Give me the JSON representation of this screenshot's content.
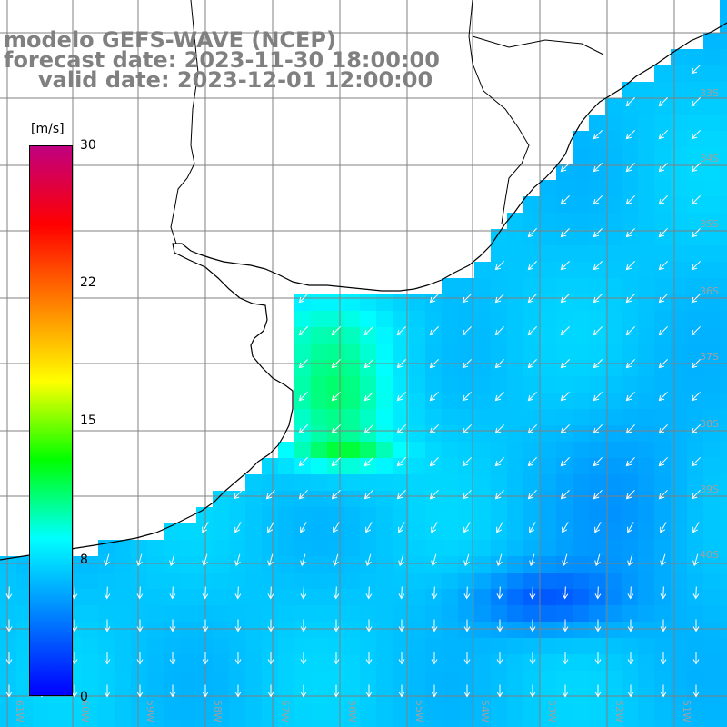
{
  "title": {
    "line1": "modelo GEFS-WAVE (NCEP)",
    "line2": "forecast date: 2023-11-30 18:00:00",
    "line3": "valid date: 2023-12-01 12:00:00"
  },
  "colorbar": {
    "unit": "[m/s]",
    "ticks": [
      "30",
      "22",
      "15",
      "8",
      "0"
    ],
    "tick_values": [
      30,
      22,
      15,
      8,
      0
    ],
    "range": [
      0,
      30
    ],
    "colors": [
      "#0000ff",
      "#0080ff",
      "#00ffff",
      "#00ff00",
      "#ffff00",
      "#ff8000",
      "#ff0000",
      "#c00080"
    ]
  },
  "map": {
    "lon_labels": [
      "61W",
      "60W",
      "59W",
      "58W",
      "57W",
      "56W",
      "55W",
      "54W",
      "53W",
      "52W",
      "51W"
    ],
    "lat_labels": [
      "33S",
      "34S",
      "35S",
      "36S",
      "37S",
      "38S",
      "39S",
      "40S"
    ],
    "colors": {
      "land": "#ffffff",
      "grid": "#808080",
      "coast": "#000000",
      "arrow": "#ffffff",
      "label": "#a0a0a0"
    },
    "field_note": "wind speed shaded with direction arrows pointing SW offshore, S in the south"
  }
}
